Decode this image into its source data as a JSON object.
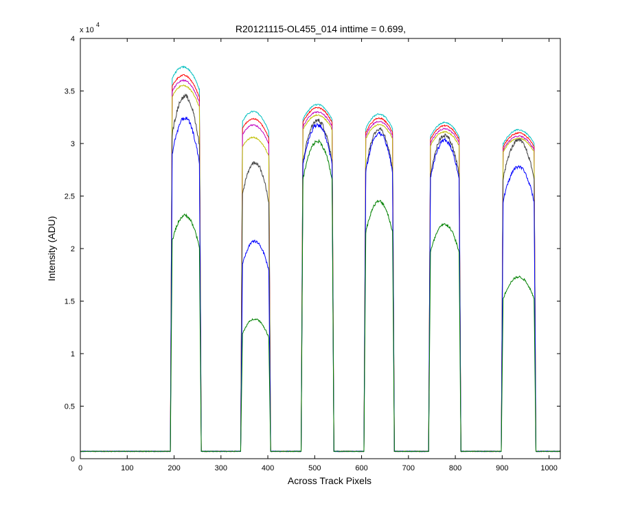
{
  "chart_data": {
    "type": "line",
    "title": "R20121115-OL455_014 inttime = 0.699,",
    "xlabel": "Across Track Pixels",
    "ylabel": "Intensity (ADU)",
    "y_multiplier_label": "x 10",
    "y_multiplier_exponent": "4",
    "xlim": [
      0,
      1024
    ],
    "ylim": [
      0,
      40000
    ],
    "xticks": [
      0,
      100,
      200,
      300,
      400,
      500,
      600,
      700,
      800,
      900,
      1000
    ],
    "yticks": [
      0,
      5000,
      10000,
      15000,
      20000,
      25000,
      30000,
      35000,
      40000
    ],
    "xtick_labels": [
      "0",
      "100",
      "200",
      "300",
      "400",
      "500",
      "600",
      "700",
      "800",
      "900",
      "1000"
    ],
    "ytick_labels": [
      "0",
      "0.5",
      "1",
      "1.5",
      "2",
      "2.5",
      "3",
      "3.5",
      "4"
    ],
    "grid": false,
    "baseline": 700,
    "blocks": [
      {
        "start": 196,
        "end": 254
      },
      {
        "start": 346,
        "end": 402
      },
      {
        "start": 475,
        "end": 537
      },
      {
        "start": 609,
        "end": 666
      },
      {
        "start": 747,
        "end": 808
      },
      {
        "start": 902,
        "end": 968
      }
    ],
    "series": [
      {
        "color": "#00BFBF",
        "block_peaks": [
          37800,
          33500,
          33700,
          32800,
          32000,
          31300
        ]
      },
      {
        "color": "#FF0000",
        "block_peaks": [
          37000,
          32800,
          33400,
          32400,
          31700,
          31000
        ]
      },
      {
        "color": "#BF00BF",
        "block_peaks": [
          36500,
          32200,
          33000,
          32100,
          31400,
          30700
        ]
      },
      {
        "color": "#BFBF00",
        "block_peaks": [
          36000,
          31000,
          32700,
          31800,
          31100,
          30500
        ]
      },
      {
        "color": "#404040",
        "block_peaks": [
          35000,
          28600,
          32200,
          31400,
          30800,
          30300
        ]
      },
      {
        "color": "#0000FF",
        "block_peaks": [
          32900,
          21000,
          31800,
          31000,
          30300,
          27800
        ]
      },
      {
        "color": "#008000",
        "block_peaks": [
          23500,
          13500,
          30200,
          24500,
          22300,
          17300
        ]
      }
    ]
  }
}
